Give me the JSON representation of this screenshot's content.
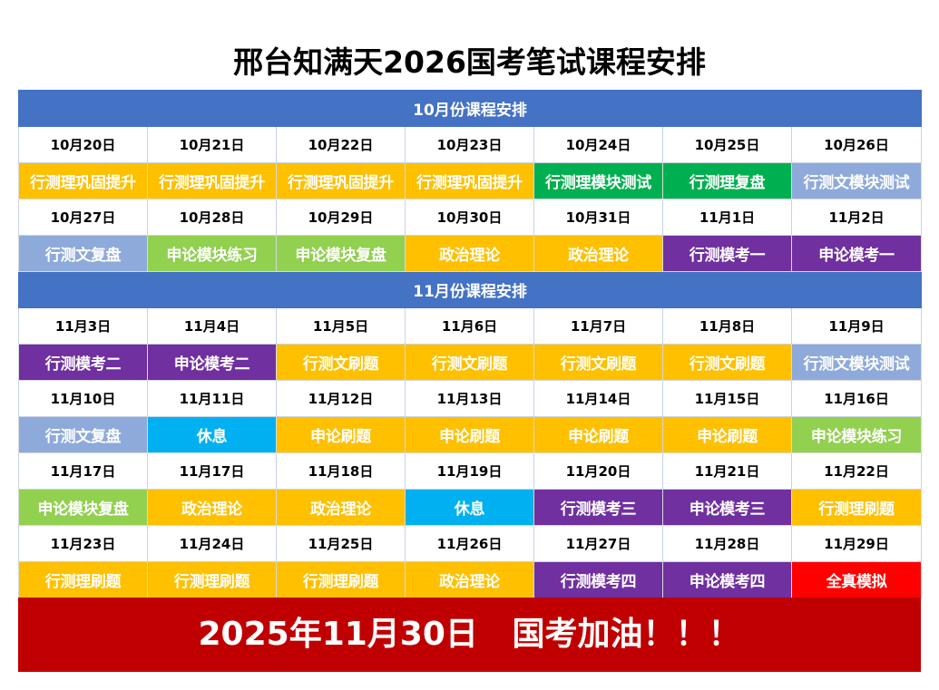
{
  "title": "邢台知满天2026国考笔试课程安排",
  "colors": {
    "header_blue": "#4472c4",
    "yellow": "#ffc000",
    "green": "#00b050",
    "light_blue": "#8eaadb",
    "light_green": "#92d050",
    "purple": "#7030a0",
    "cyan": "#00b0f0",
    "red": "#ff0000",
    "footer_red": "#c00000"
  },
  "sections": [
    {
      "heading": "10月份课程安排",
      "weeks": [
        {
          "dates": [
            "10月20日",
            "10月21日",
            "10月22日",
            "10月23日",
            "10月24日",
            "10月25日",
            "10月26日"
          ],
          "courses": [
            {
              "label": "行测理巩固提升",
              "color": "#ffc000"
            },
            {
              "label": "行测理巩固提升",
              "color": "#ffc000"
            },
            {
              "label": "行测理巩固提升",
              "color": "#ffc000"
            },
            {
              "label": "行测理巩固提升",
              "color": "#ffc000"
            },
            {
              "label": "行测理模块测试",
              "color": "#00b050"
            },
            {
              "label": "行测理复盘",
              "color": "#00b050"
            },
            {
              "label": "行测文模块测试",
              "color": "#8eaadb"
            }
          ]
        },
        {
          "dates": [
            "10月27日",
            "10月28日",
            "10月29日",
            "10月30日",
            "10月31日",
            "11月1日",
            "11月2日"
          ],
          "courses": [
            {
              "label": "行测文复盘",
              "color": "#8eaadb"
            },
            {
              "label": "申论模块练习",
              "color": "#92d050"
            },
            {
              "label": "申论模块复盘",
              "color": "#92d050"
            },
            {
              "label": "政治理论",
              "color": "#ffc000"
            },
            {
              "label": "政治理论",
              "color": "#ffc000"
            },
            {
              "label": "行测模考一",
              "color": "#7030a0"
            },
            {
              "label": "申论模考一",
              "color": "#7030a0"
            }
          ]
        }
      ]
    },
    {
      "heading": "11月份课程安排",
      "weeks": [
        {
          "dates": [
            "11月3日",
            "11月4日",
            "11月5日",
            "11月6日",
            "11月7日",
            "11月8日",
            "11月9日"
          ],
          "courses": [
            {
              "label": "行测模考二",
              "color": "#7030a0"
            },
            {
              "label": "申论模考二",
              "color": "#7030a0"
            },
            {
              "label": "行测文刷题",
              "color": "#ffc000"
            },
            {
              "label": "行测文刷题",
              "color": "#ffc000"
            },
            {
              "label": "行测文刷题",
              "color": "#ffc000"
            },
            {
              "label": "行测文刷题",
              "color": "#ffc000"
            },
            {
              "label": "行测文模块测试",
              "color": "#8eaadb"
            }
          ]
        },
        {
          "dates": [
            "11月10日",
            "11月11日",
            "11月12日",
            "11月13日",
            "11月14日",
            "11月15日",
            "11月16日"
          ],
          "courses": [
            {
              "label": "行测文复盘",
              "color": "#8eaadb"
            },
            {
              "label": "休息",
              "color": "#00b0f0"
            },
            {
              "label": "申论刷题",
              "color": "#ffc000"
            },
            {
              "label": "申论刷题",
              "color": "#ffc000"
            },
            {
              "label": "申论刷题",
              "color": "#ffc000"
            },
            {
              "label": "申论刷题",
              "color": "#ffc000"
            },
            {
              "label": "申论模块练习",
              "color": "#92d050"
            }
          ]
        },
        {
          "dates": [
            "11月17日",
            "11月17日",
            "11月18日",
            "11月19日",
            "11月20日",
            "11月21日",
            "11月22日"
          ],
          "courses": [
            {
              "label": "申论模块复盘",
              "color": "#92d050"
            },
            {
              "label": "政治理论",
              "color": "#ffc000"
            },
            {
              "label": "政治理论",
              "color": "#ffc000"
            },
            {
              "label": "休息",
              "color": "#00b0f0"
            },
            {
              "label": "行测模考三",
              "color": "#7030a0"
            },
            {
              "label": "申论模考三",
              "color": "#7030a0"
            },
            {
              "label": "行测理刷题",
              "color": "#ffc000"
            }
          ]
        },
        {
          "dates": [
            "11月23日",
            "11月24日",
            "11月25日",
            "11月26日",
            "11月27日",
            "11月28日",
            "11月29日"
          ],
          "courses": [
            {
              "label": "行测理刷题",
              "color": "#ffc000"
            },
            {
              "label": "行测理刷题",
              "color": "#ffc000"
            },
            {
              "label": "行测理刷题",
              "color": "#ffc000"
            },
            {
              "label": "政治理论",
              "color": "#ffc000"
            },
            {
              "label": "行测模考四",
              "color": "#7030a0"
            },
            {
              "label": "申论模考四",
              "color": "#7030a0"
            },
            {
              "label": "全真模拟",
              "color": "#ff0000"
            }
          ]
        }
      ]
    }
  ],
  "footer": "2025年11月30日   国考加油！！！"
}
